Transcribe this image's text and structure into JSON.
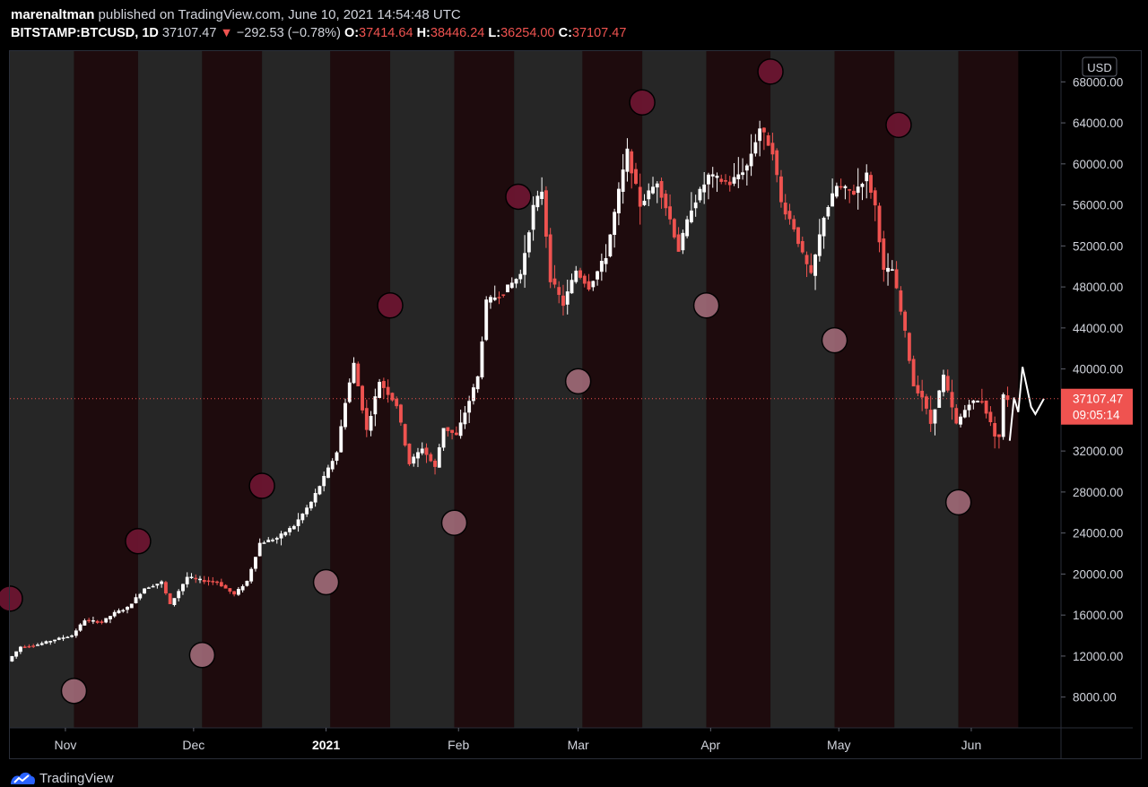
{
  "header": {
    "publisher": "marenaltman",
    "published_text": "published on TradingView.com, June 10, 2021 14:54:48 UTC",
    "symbol": "BITSTAMP:BTCUSD, 1D",
    "last": "37107.47",
    "change_arrow": "▼",
    "change": "−292.53 (−0.78%)",
    "o_label": "O:",
    "o_value": "37414.64",
    "h_label": "H:",
    "h_value": "38446.24",
    "l_label": "L:",
    "l_value": "36254.00",
    "c_label": "C:",
    "c_value": "37107.47"
  },
  "price_axis": {
    "currency": "USD",
    "last_price_label": "37107.47",
    "countdown_label": "09:05:14"
  },
  "branding": {
    "name": "TradingView",
    "icon": "tradingview-logo-icon"
  },
  "colors": {
    "up": "#ffffff",
    "down": "#ef5350",
    "band_gray": "#262626",
    "band_red": "#1e0b0d",
    "dot_dark": "#6b1530",
    "dot_light": "#a06a78",
    "last_price": "#ef5350"
  },
  "chart_data": {
    "type": "candlestick",
    "title": "",
    "currency": "USD",
    "interval": "1D",
    "date_range": [
      "2020-10-19",
      "2021-06-22"
    ],
    "ylim": [
      5000,
      71000
    ],
    "y_ticks": [
      "68000.00",
      "64000.00",
      "60000.00",
      "56000.00",
      "52000.00",
      "48000.00",
      "44000.00",
      "40000.00",
      "36000.00",
      "32000.00",
      "28000.00",
      "24000.00",
      "20000.00",
      "16000.00",
      "12000.00",
      "8000.00"
    ],
    "x_ticks": [
      {
        "date": "2020-11-01",
        "label": "Nov",
        "bold": false
      },
      {
        "date": "2020-12-01",
        "label": "Dec",
        "bold": false
      },
      {
        "date": "2021-01-01",
        "label": "2021",
        "bold": true
      },
      {
        "date": "2021-02-01",
        "label": "Feb",
        "bold": false
      },
      {
        "date": "2021-03-01",
        "label": "Mar",
        "bold": false
      },
      {
        "date": "2021-04-01",
        "label": "Apr",
        "bold": false
      },
      {
        "date": "2021-05-01",
        "label": "May",
        "bold": false
      },
      {
        "date": "2021-06-01",
        "label": "Jun",
        "bold": false
      }
    ],
    "last_price": 37107.47,
    "background_bands": [
      {
        "start": "2020-10-19",
        "end": "2020-11-03",
        "color": "gray"
      },
      {
        "start": "2020-11-03",
        "end": "2020-11-18",
        "color": "red"
      },
      {
        "start": "2020-11-18",
        "end": "2020-12-03",
        "color": "gray"
      },
      {
        "start": "2020-12-03",
        "end": "2020-12-17",
        "color": "red"
      },
      {
        "start": "2020-12-17",
        "end": "2021-01-02",
        "color": "gray"
      },
      {
        "start": "2021-01-02",
        "end": "2021-01-16",
        "color": "red"
      },
      {
        "start": "2021-01-16",
        "end": "2021-01-31",
        "color": "gray"
      },
      {
        "start": "2021-01-31",
        "end": "2021-02-14",
        "color": "red"
      },
      {
        "start": "2021-02-14",
        "end": "2021-03-02",
        "color": "gray"
      },
      {
        "start": "2021-03-02",
        "end": "2021-03-16",
        "color": "red"
      },
      {
        "start": "2021-03-16",
        "end": "2021-03-31",
        "color": "gray"
      },
      {
        "start": "2021-03-31",
        "end": "2021-04-15",
        "color": "red"
      },
      {
        "start": "2021-04-15",
        "end": "2021-04-30",
        "color": "gray"
      },
      {
        "start": "2021-04-30",
        "end": "2021-05-14",
        "color": "red"
      },
      {
        "start": "2021-05-14",
        "end": "2021-05-29",
        "color": "gray"
      },
      {
        "start": "2021-05-29",
        "end": "2021-06-12",
        "color": "red"
      }
    ],
    "markers": [
      {
        "date": "2020-10-19",
        "value": 17600,
        "shade": "dark"
      },
      {
        "date": "2020-11-03",
        "value": 8600,
        "shade": "light"
      },
      {
        "date": "2020-11-18",
        "value": 23200,
        "shade": "dark"
      },
      {
        "date": "2020-12-03",
        "value": 12100,
        "shade": "light"
      },
      {
        "date": "2020-12-17",
        "value": 28600,
        "shade": "dark"
      },
      {
        "date": "2021-01-01",
        "value": 19200,
        "shade": "light"
      },
      {
        "date": "2021-01-16",
        "value": 46200,
        "shade": "dark"
      },
      {
        "date": "2021-01-31",
        "value": 25000,
        "shade": "light"
      },
      {
        "date": "2021-02-15",
        "value": 56800,
        "shade": "dark"
      },
      {
        "date": "2021-03-01",
        "value": 38800,
        "shade": "light"
      },
      {
        "date": "2021-03-16",
        "value": 66000,
        "shade": "dark"
      },
      {
        "date": "2021-03-31",
        "value": 46200,
        "shade": "light"
      },
      {
        "date": "2021-04-15",
        "value": 69000,
        "shade": "dark"
      },
      {
        "date": "2021-04-30",
        "value": 42800,
        "shade": "light"
      },
      {
        "date": "2021-05-15",
        "value": 63800,
        "shade": "dark"
      },
      {
        "date": "2021-05-29",
        "value": 27000,
        "shade": "light"
      }
    ],
    "path_projection": [
      {
        "date": "2021-06-10",
        "value": 33000
      },
      {
        "date": "2021-06-11",
        "value": 37200
      },
      {
        "date": "2021-06-12",
        "value": 35800
      },
      {
        "date": "2021-06-13",
        "value": 40200
      },
      {
        "date": "2021-06-15",
        "value": 36300
      },
      {
        "date": "2021-06-16",
        "value": 35600
      },
      {
        "date": "2021-06-18",
        "value": 37100
      }
    ],
    "price_path": [
      [
        "2020-10-19",
        11500
      ],
      [
        "2020-10-22",
        12900
      ],
      [
        "2020-10-26",
        13100
      ],
      [
        "2020-10-30",
        13600
      ],
      [
        "2020-11-03",
        14000
      ],
      [
        "2020-11-06",
        15500
      ],
      [
        "2020-11-10",
        15300
      ],
      [
        "2020-11-13",
        16200
      ],
      [
        "2020-11-16",
        16700
      ],
      [
        "2020-11-20",
        18600
      ],
      [
        "2020-11-24",
        19200
      ],
      [
        "2020-11-26",
        17000
      ],
      [
        "2020-11-30",
        19700
      ],
      [
        "2020-12-03",
        19400
      ],
      [
        "2020-12-07",
        19200
      ],
      [
        "2020-12-11",
        18000
      ],
      [
        "2020-12-14",
        19300
      ],
      [
        "2020-12-17",
        23000
      ],
      [
        "2020-12-21",
        23500
      ],
      [
        "2020-12-25",
        24700
      ],
      [
        "2020-12-29",
        27000
      ],
      [
        "2021-01-01",
        29400
      ],
      [
        "2021-01-04",
        31900
      ],
      [
        "2021-01-06",
        36800
      ],
      [
        "2021-01-08",
        40500
      ],
      [
        "2021-01-11",
        34000
      ],
      [
        "2021-01-14",
        38800
      ],
      [
        "2021-01-18",
        36500
      ],
      [
        "2021-01-21",
        30800
      ],
      [
        "2021-01-24",
        32300
      ],
      [
        "2021-01-27",
        30400
      ],
      [
        "2021-01-29",
        34300
      ],
      [
        "2021-02-01",
        33500
      ],
      [
        "2021-02-04",
        36900
      ],
      [
        "2021-02-06",
        39200
      ],
      [
        "2021-02-08",
        46500
      ],
      [
        "2021-02-12",
        47500
      ],
      [
        "2021-02-16",
        49200
      ],
      [
        "2021-02-19",
        55800
      ],
      [
        "2021-02-21",
        57400
      ],
      [
        "2021-02-23",
        48800
      ],
      [
        "2021-02-26",
        46300
      ],
      [
        "2021-03-01",
        49600
      ],
      [
        "2021-03-04",
        48000
      ],
      [
        "2021-03-08",
        51000
      ],
      [
        "2021-03-11",
        57300
      ],
      [
        "2021-03-13",
        61200
      ],
      [
        "2021-03-16",
        56000
      ],
      [
        "2021-03-20",
        58300
      ],
      [
        "2021-03-23",
        54600
      ],
      [
        "2021-03-25",
        51600
      ],
      [
        "2021-03-28",
        55700
      ],
      [
        "2021-04-01",
        58800
      ],
      [
        "2021-04-06",
        58100
      ],
      [
        "2021-04-10",
        59800
      ],
      [
        "2021-04-13",
        63500
      ],
      [
        "2021-04-16",
        61300
      ],
      [
        "2021-04-18",
        56200
      ],
      [
        "2021-04-21",
        53800
      ],
      [
        "2021-04-23",
        51100
      ],
      [
        "2021-04-25",
        49100
      ],
      [
        "2021-04-28",
        54900
      ],
      [
        "2021-05-01",
        57800
      ],
      [
        "2021-05-05",
        57200
      ],
      [
        "2021-05-08",
        58900
      ],
      [
        "2021-05-10",
        55900
      ],
      [
        "2021-05-12",
        49500
      ],
      [
        "2021-05-14",
        49700
      ],
      [
        "2021-05-17",
        43500
      ],
      [
        "2021-05-19",
        38400
      ],
      [
        "2021-05-21",
        37300
      ],
      [
        "2021-05-23",
        34700
      ],
      [
        "2021-05-26",
        39300
      ],
      [
        "2021-05-29",
        34600
      ],
      [
        "2021-06-01",
        36700
      ],
      [
        "2021-06-04",
        36900
      ],
      [
        "2021-06-07",
        33600
      ],
      [
        "2021-06-08",
        33400
      ],
      [
        "2021-06-09",
        37400
      ],
      [
        "2021-06-10",
        37107
      ]
    ]
  }
}
